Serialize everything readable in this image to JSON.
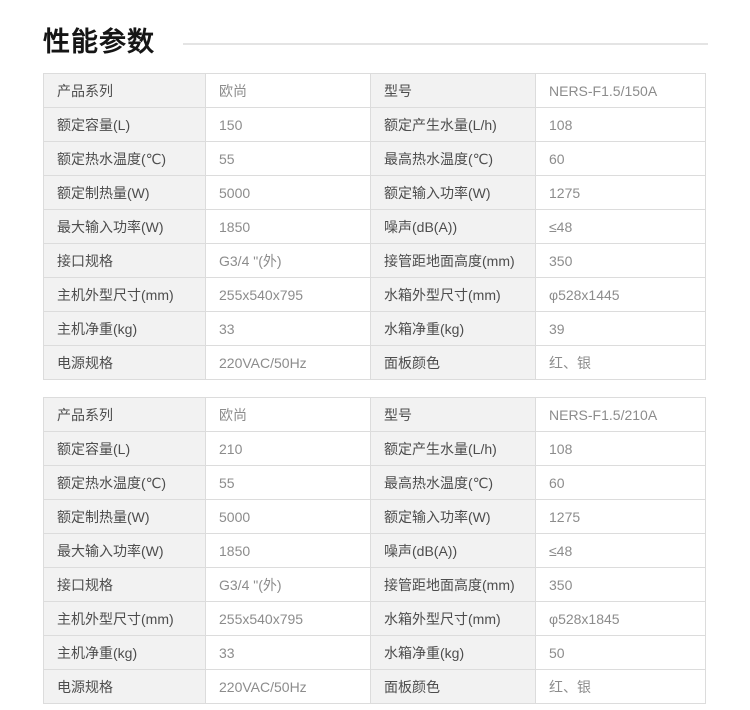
{
  "page": {
    "title": "性能参数"
  },
  "colors": {
    "label_bg": "#f2f2f2",
    "cell_border": "#dcdcdc",
    "label_text": "#4d4d4d",
    "value_text": "#8c8c8c",
    "title_text": "#151515",
    "title_rule": "#e4e4e4"
  },
  "tables": [
    {
      "name": "spec-table-150a",
      "rows": [
        [
          "产品系列",
          "欧尚",
          "型号",
          "NERS-F1.5/150A"
        ],
        [
          "额定容量(L)",
          "150",
          "额定产生水量(L/h)",
          "108"
        ],
        [
          "额定热水温度(℃)",
          "55",
          "最高热水温度(℃)",
          "60"
        ],
        [
          "额定制热量(W)",
          "5000",
          "额定输入功率(W)",
          "1275"
        ],
        [
          "最大输入功率(W)",
          "1850",
          "噪声(dB(A))",
          "≤48"
        ],
        [
          "接口规格",
          "G3/4 \"(外)",
          "接管距地面高度(mm)",
          "350"
        ],
        [
          "主机外型尺寸(mm)",
          "255x540x795",
          "水箱外型尺寸(mm)",
          "φ528x1445"
        ],
        [
          "主机净重(kg)",
          "33",
          "水箱净重(kg)",
          "39"
        ],
        [
          "电源规格",
          "220VAC/50Hz",
          "面板颜色",
          "红、银"
        ]
      ]
    },
    {
      "name": "spec-table-210a",
      "rows": [
        [
          "产品系列",
          "欧尚",
          "型号",
          "NERS-F1.5/210A"
        ],
        [
          "额定容量(L)",
          "210",
          "额定产生水量(L/h)",
          "108"
        ],
        [
          "额定热水温度(℃)",
          "55",
          "最高热水温度(℃)",
          "60"
        ],
        [
          "额定制热量(W)",
          "5000",
          "额定输入功率(W)",
          "1275"
        ],
        [
          "最大输入功率(W)",
          "1850",
          "噪声(dB(A))",
          "≤48"
        ],
        [
          "接口规格",
          "G3/4 \"(外)",
          "接管距地面高度(mm)",
          "350"
        ],
        [
          "主机外型尺寸(mm)",
          "255x540x795",
          "水箱外型尺寸(mm)",
          "φ528x1845"
        ],
        [
          "主机净重(kg)",
          "33",
          "水箱净重(kg)",
          "50"
        ],
        [
          "电源规格",
          "220VAC/50Hz",
          "面板颜色",
          "红、银"
        ]
      ]
    }
  ]
}
